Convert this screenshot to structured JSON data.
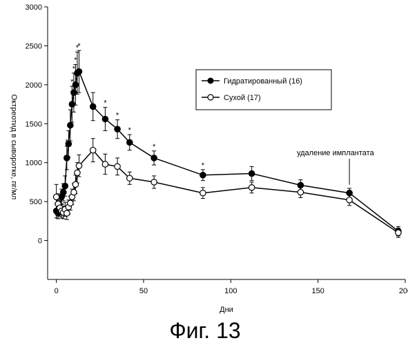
{
  "figure": {
    "caption": "Фиг. 13"
  },
  "chart_data": {
    "type": "line",
    "title": "",
    "xlabel": "Дни",
    "ylabel": "Октреотид в сыворотке, пг/мл",
    "xlim": [
      -5,
      200
    ],
    "ylim": [
      -500,
      3000
    ],
    "xticks": [
      0,
      50,
      100,
      150,
      200
    ],
    "yticks": [
      0,
      500,
      1000,
      1500,
      2000,
      2500,
      3000
    ],
    "grid": false,
    "legend_position": "top-right",
    "series": [
      {
        "name": "Гидратированный (16)",
        "marker": "filled-circle",
        "color": "#000000",
        "x": [
          0,
          1,
          2,
          3,
          4,
          5,
          6,
          7,
          8,
          9,
          10,
          11,
          12,
          13,
          21,
          28,
          35,
          42,
          56,
          84,
          112,
          140,
          168,
          196
        ],
        "y": [
          380,
          350,
          420,
          560,
          620,
          700,
          1060,
          1240,
          1480,
          1750,
          1900,
          2000,
          2150,
          2170,
          1720,
          1560,
          1430,
          1260,
          1060,
          840,
          860,
          710,
          610,
          120
        ],
        "err": [
          90,
          70,
          90,
          100,
          110,
          130,
          150,
          170,
          200,
          230,
          250,
          260,
          270,
          270,
          180,
          150,
          120,
          100,
          90,
          70,
          90,
          70,
          60,
          60
        ],
        "significant": [
          false,
          false,
          false,
          false,
          false,
          false,
          true,
          true,
          true,
          true,
          true,
          true,
          true,
          true,
          false,
          true,
          true,
          true,
          true,
          true,
          false,
          false,
          false,
          false
        ]
      },
      {
        "name": "Сухой (17)",
        "marker": "open-circle",
        "color": "#000000",
        "x": [
          0,
          1,
          2,
          3,
          4,
          5,
          6,
          7,
          8,
          9,
          10,
          11,
          12,
          13,
          21,
          28,
          35,
          42,
          56,
          84,
          112,
          140,
          168,
          196
        ],
        "y": [
          560,
          470,
          420,
          380,
          360,
          400,
          350,
          430,
          480,
          560,
          620,
          720,
          870,
          960,
          1160,
          980,
          950,
          800,
          750,
          610,
          680,
          620,
          520,
          100
        ],
        "err": [
          160,
          130,
          110,
          90,
          80,
          90,
          80,
          90,
          90,
          100,
          110,
          120,
          130,
          140,
          150,
          130,
          110,
          80,
          80,
          70,
          70,
          70,
          70,
          60
        ]
      }
    ],
    "significance_marker": "*",
    "annotations": [
      {
        "text": "удаление имплантата",
        "x": 168,
        "y": 610
      }
    ]
  }
}
